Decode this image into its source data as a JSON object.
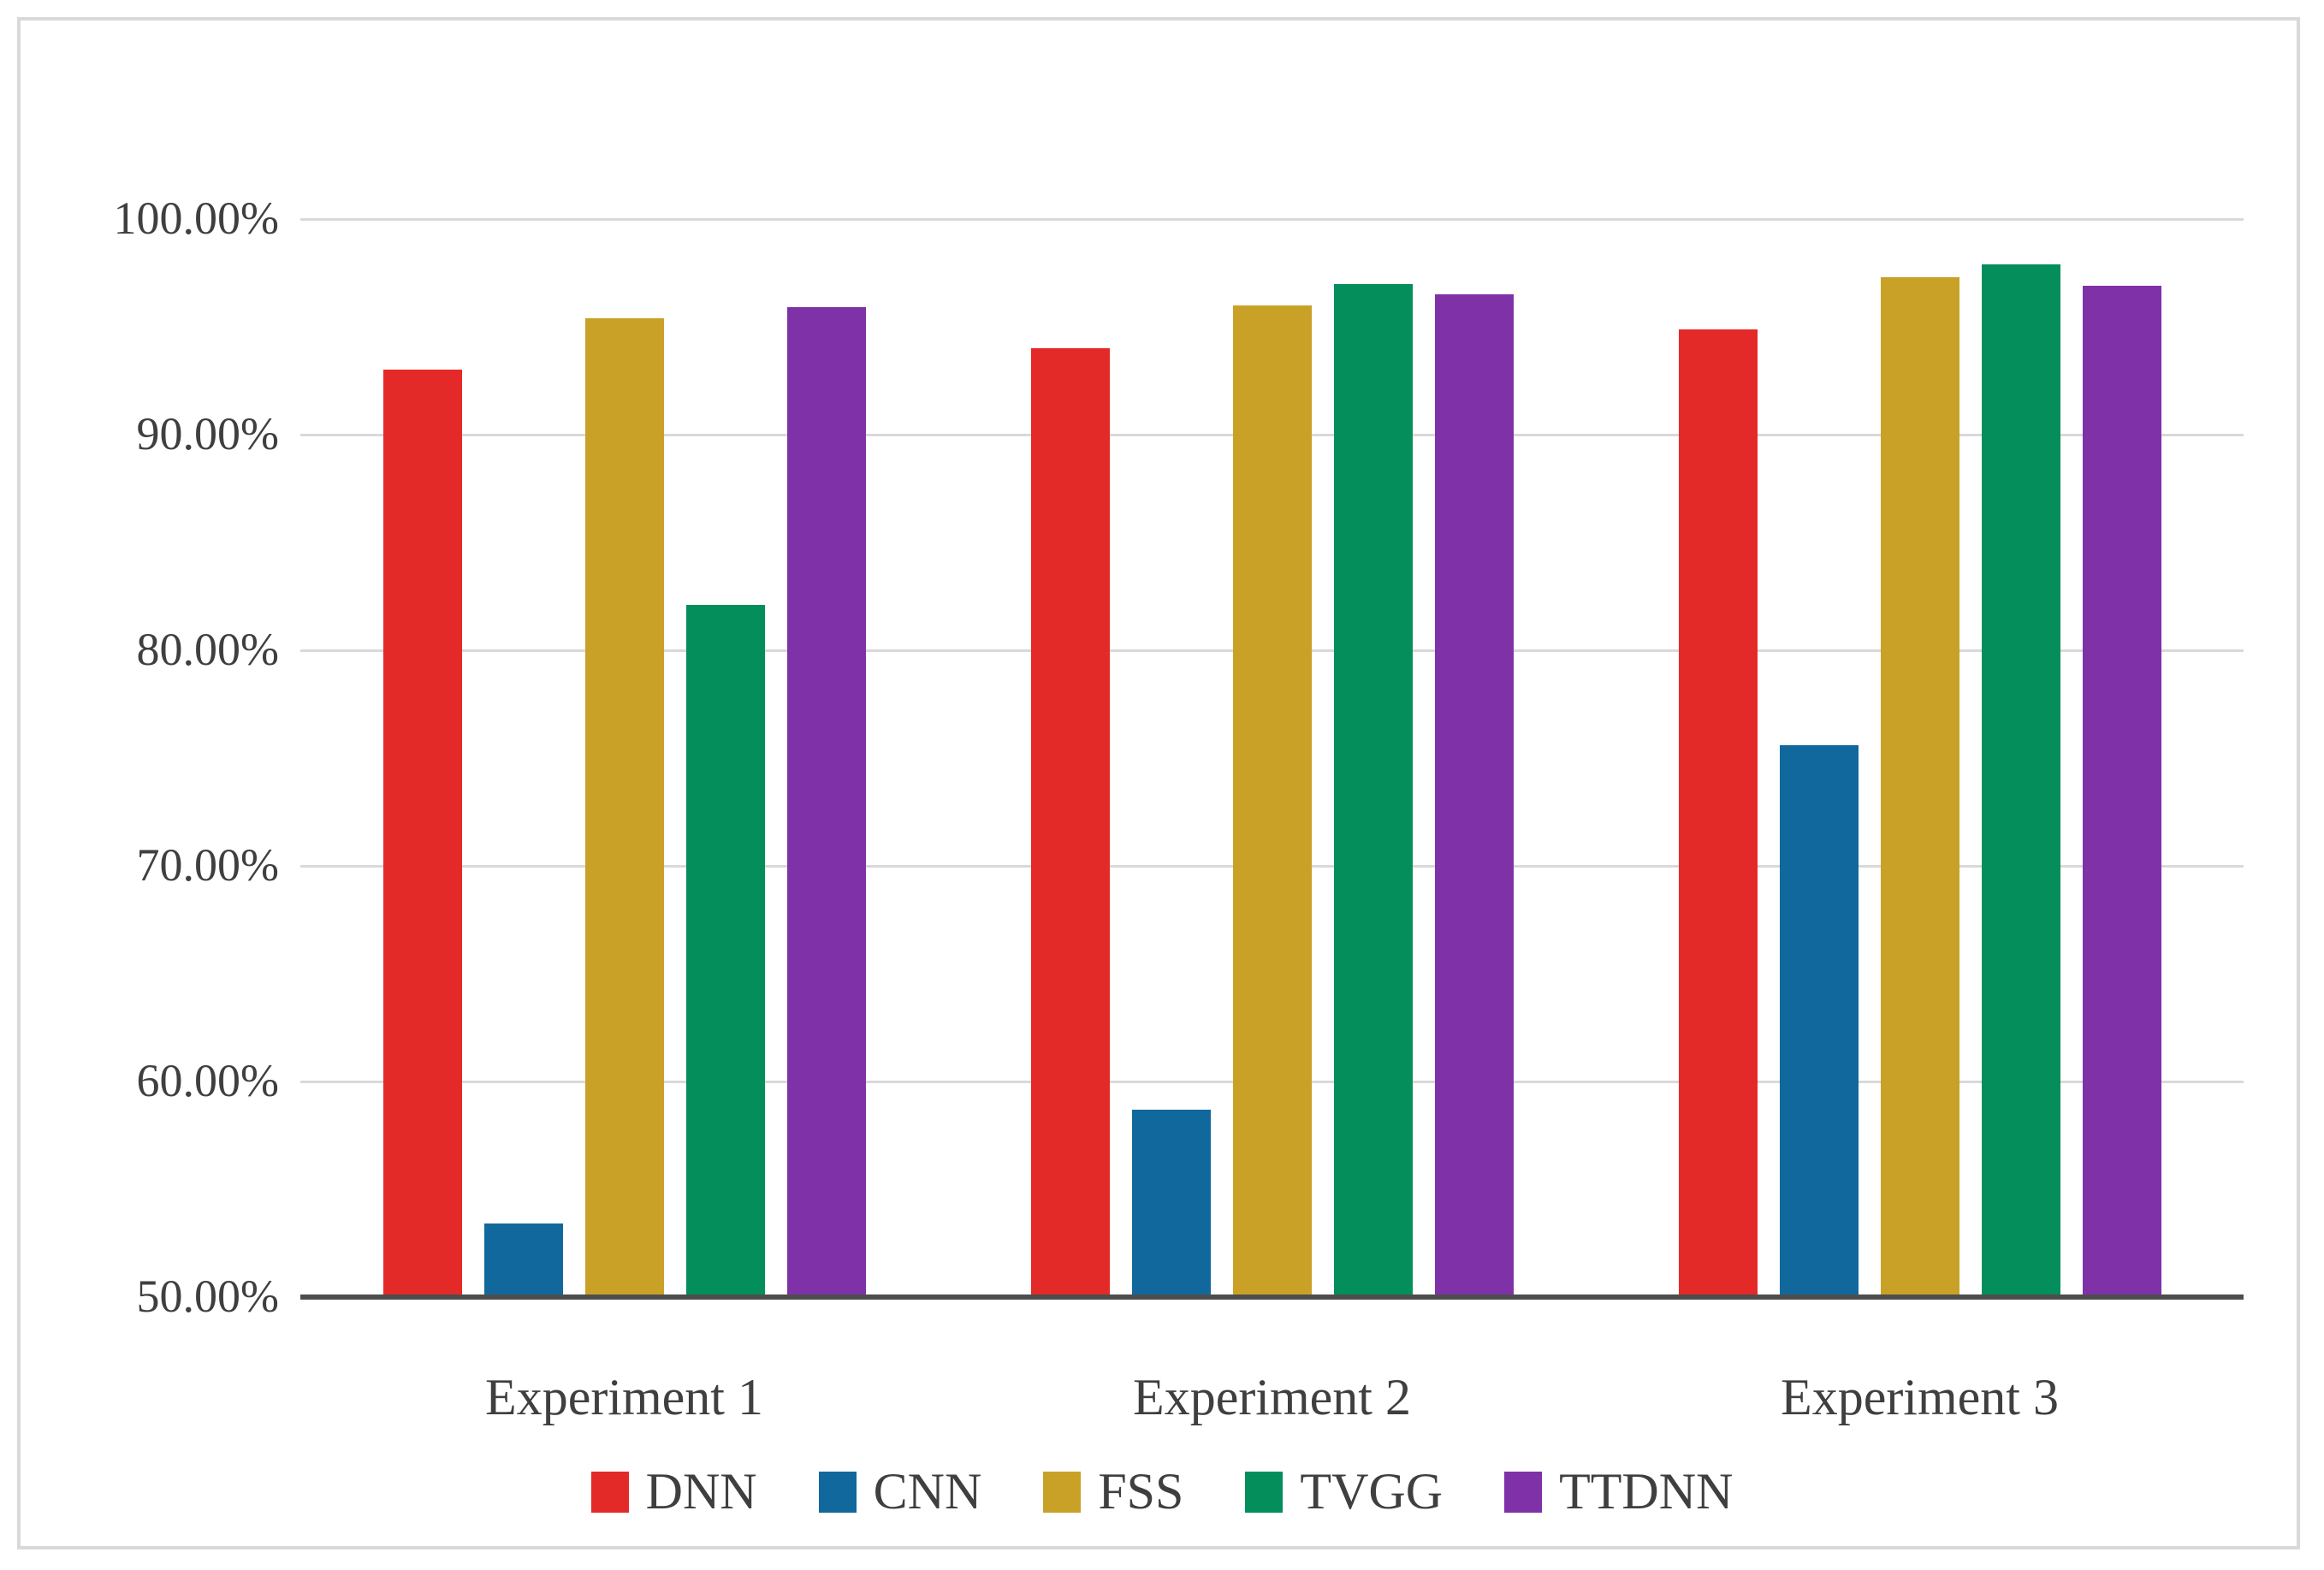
{
  "chart_data": {
    "type": "bar",
    "title": "",
    "xlabel": "",
    "ylabel": "",
    "categories": [
      "Experiment 1",
      "Experiment 2",
      "Experiment 3"
    ],
    "series": [
      {
        "name": "DNN",
        "color": "#e42a28",
        "values": [
          93.0,
          94.0,
          94.9
        ]
      },
      {
        "name": "CNN",
        "color": "#11689c",
        "values": [
          53.4,
          58.7,
          75.6
        ]
      },
      {
        "name": "FSS",
        "color": "#c9a127",
        "values": [
          95.4,
          96.0,
          97.3
        ]
      },
      {
        "name": "TVGG",
        "color": "#048e5b",
        "values": [
          82.1,
          97.0,
          97.9
        ]
      },
      {
        "name": "TTDNN",
        "color": "#7f31a8",
        "values": [
          95.9,
          96.5,
          96.9
        ]
      }
    ],
    "ylim": [
      50,
      100
    ],
    "y_tick_step": 10,
    "y_tick_labels": [
      "100.00%",
      "90.00%",
      "80.00%",
      "70.00%",
      "60.00%",
      "50.00%"
    ],
    "grid": "horizontal",
    "gridline_color": "#d9d9d9",
    "axis_line_color": "#4d4d4d",
    "text_color": "#3f3f3f",
    "legend_position": "bottom",
    "legend_labels": [
      "DNN",
      "CNN",
      "FSS",
      "TVGG",
      "TTDNN"
    ]
  }
}
